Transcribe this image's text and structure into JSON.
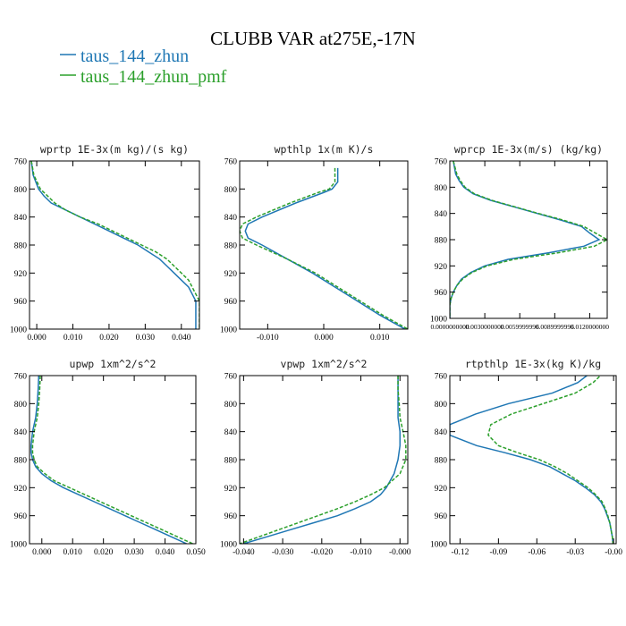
{
  "figure": {
    "title": "CLUBB VAR at275E,-17N",
    "legend": [
      {
        "label": "taus_144_zhun",
        "color": "#1f77b4",
        "dash": "solid"
      },
      {
        "label": "taus_144_zhun_pmf",
        "color": "#2ca02c",
        "dash": "dashed"
      }
    ],
    "colors": {
      "series1": "#1f77b4",
      "series2": "#2ca02c"
    }
  },
  "chart_data": [
    {
      "type": "line",
      "title": "wprtp  1E-3x(m kg)/(s kg)",
      "xlim": [
        -0.002,
        0.045
      ],
      "ylim": [
        760,
        1000
      ],
      "y_reversed": true,
      "xticks": [
        "0.000",
        "0.010",
        "0.020",
        "0.030",
        "0.040"
      ],
      "xtick_values": [
        0,
        0.01,
        0.02,
        0.03,
        0.04
      ],
      "yticks": [
        "760",
        "800",
        "840",
        "880",
        "920",
        "960",
        "1000"
      ],
      "ytick_values": [
        760,
        800,
        840,
        880,
        920,
        960,
        1000
      ],
      "series": [
        {
          "y": [
            760,
            780,
            800,
            810,
            820,
            830,
            840,
            850,
            860,
            870,
            880,
            890,
            900,
            910,
            920,
            930,
            940,
            950,
            960,
            970,
            980,
            990,
            1000
          ],
          "x": [
            -0.0015,
            -0.001,
            0.0005,
            0.002,
            0.004,
            0.008,
            0.012,
            0.016,
            0.02,
            0.024,
            0.028,
            0.031,
            0.034,
            0.036,
            0.038,
            0.04,
            0.042,
            0.043,
            0.044,
            0.044,
            0.044,
            0.044,
            0.044
          ]
        },
        {
          "y": [
            760,
            780,
            800,
            810,
            820,
            830,
            840,
            850,
            860,
            870,
            880,
            890,
            900,
            910,
            920,
            930,
            940,
            950,
            960,
            970,
            980,
            990,
            1000
          ],
          "x": [
            -0.0015,
            -0.0008,
            0.001,
            0.003,
            0.005,
            0.008,
            0.012,
            0.017,
            0.021,
            0.025,
            0.029,
            0.033,
            0.036,
            0.038,
            0.04,
            0.042,
            0.043,
            0.044,
            0.045,
            0.045,
            0.045,
            0.045,
            0.045
          ]
        }
      ]
    },
    {
      "type": "line",
      "title": "wpthlp  1x(m K)/s",
      "xlim": [
        -0.015,
        0.015
      ],
      "ylim": [
        760,
        1000
      ],
      "y_reversed": true,
      "xticks": [
        "-0.010",
        "0.000",
        "0.010"
      ],
      "xtick_values": [
        -0.01,
        0,
        0.01
      ],
      "yticks": [
        "760",
        "800",
        "840",
        "880",
        "920",
        "960",
        "1000"
      ],
      "ytick_values": [
        760,
        800,
        840,
        880,
        920,
        960,
        1000
      ],
      "series": [
        {
          "y": [
            770,
            780,
            790,
            800,
            805,
            820,
            840,
            850,
            860,
            870,
            880,
            900,
            920,
            940,
            960,
            980,
            1000
          ],
          "x": [
            0.0025,
            0.0025,
            0.0025,
            0.0015,
            0.0,
            -0.005,
            -0.011,
            -0.0135,
            -0.014,
            -0.0135,
            -0.011,
            -0.0065,
            -0.002,
            0.002,
            0.006,
            0.01,
            0.0145
          ]
        },
        {
          "y": [
            770,
            780,
            790,
            800,
            805,
            820,
            840,
            850,
            860,
            870,
            880,
            900,
            920,
            940,
            960,
            980,
            1000
          ],
          "x": [
            0.002,
            0.002,
            0.002,
            0.001,
            -0.001,
            -0.006,
            -0.012,
            -0.0145,
            -0.015,
            -0.0145,
            -0.012,
            -0.0065,
            -0.0015,
            0.0025,
            0.0065,
            0.0105,
            0.015
          ]
        }
      ]
    },
    {
      "type": "line",
      "title": "wprcp  1E-3x(m/s) (kg/kg)",
      "xlim": [
        0.0,
        0.0135
      ],
      "ylim": [
        760,
        1000
      ],
      "y_reversed": true,
      "xticks": [
        "0.0000000000",
        "0.0030000000",
        "0.0059999996",
        "0.0089999996",
        "0.0120000000"
      ],
      "xtick_values": [
        0,
        0.003,
        0.006,
        0.009,
        0.012
      ],
      "yticks": [
        "760",
        "800",
        "840",
        "880",
        "920",
        "960",
        "1000"
      ],
      "ytick_values": [
        760,
        800,
        840,
        880,
        920,
        960,
        1000
      ],
      "series": [
        {
          "y": [
            760,
            780,
            790,
            800,
            810,
            820,
            830,
            840,
            850,
            860,
            870,
            880,
            890,
            900,
            910,
            920,
            930,
            940,
            950,
            960,
            970,
            980,
            990,
            1000
          ],
          "x": [
            0.0003,
            0.0005,
            0.0008,
            0.0012,
            0.002,
            0.0035,
            0.0055,
            0.0075,
            0.0095,
            0.0113,
            0.012,
            0.0128,
            0.0115,
            0.0085,
            0.005,
            0.003,
            0.0018,
            0.001,
            0.0006,
            0.0003,
            0.0001,
            0.0,
            0.0,
            0.0
          ]
        },
        {
          "y": [
            760,
            780,
            790,
            800,
            810,
            820,
            830,
            840,
            850,
            860,
            870,
            880,
            890,
            900,
            910,
            920,
            930,
            940,
            950,
            960,
            970,
            980,
            990,
            1000
          ],
          "x": [
            0.0003,
            0.0006,
            0.0009,
            0.0013,
            0.0021,
            0.0036,
            0.0056,
            0.0076,
            0.0097,
            0.0115,
            0.0125,
            0.0135,
            0.0124,
            0.0093,
            0.0055,
            0.0032,
            0.0019,
            0.0011,
            0.0006,
            0.0003,
            0.0001,
            0.0,
            0.0,
            0.0
          ]
        }
      ]
    },
    {
      "type": "line",
      "title": "upwp  1xm^2/s^2",
      "xlim": [
        -0.004,
        0.05
      ],
      "ylim": [
        760,
        1000
      ],
      "y_reversed": true,
      "xticks": [
        "0.000",
        "0.010",
        "0.020",
        "0.030",
        "0.040",
        "0.050"
      ],
      "xtick_values": [
        0,
        0.01,
        0.02,
        0.03,
        0.04,
        0.05
      ],
      "yticks": [
        "760",
        "800",
        "840",
        "880",
        "920",
        "960",
        "1000"
      ],
      "ytick_values": [
        760,
        800,
        840,
        880,
        920,
        960,
        1000
      ],
      "series": [
        {
          "y": [
            760,
            780,
            800,
            820,
            840,
            860,
            870,
            880,
            890,
            900,
            910,
            920,
            930,
            940,
            950,
            960,
            970,
            980,
            990,
            1000
          ],
          "x": [
            -0.001,
            -0.0012,
            -0.0015,
            -0.002,
            -0.003,
            -0.0035,
            -0.0035,
            -0.003,
            -0.002,
            0.0,
            0.003,
            0.007,
            0.012,
            0.017,
            0.022,
            0.027,
            0.032,
            0.037,
            0.042,
            0.047
          ]
        },
        {
          "y": [
            760,
            780,
            800,
            820,
            840,
            860,
            870,
            880,
            890,
            900,
            910,
            920,
            930,
            940,
            950,
            960,
            970,
            980,
            990,
            1000
          ],
          "x": [
            -0.0005,
            -0.0007,
            -0.001,
            -0.0015,
            -0.0025,
            -0.003,
            -0.003,
            -0.0025,
            -0.0015,
            0.001,
            0.004,
            0.009,
            0.014,
            0.019,
            0.024,
            0.029,
            0.034,
            0.039,
            0.044,
            0.049
          ]
        }
      ]
    },
    {
      "type": "line",
      "title": "vpwp  1xm^2/s^2",
      "xlim": [
        -0.041,
        0.002
      ],
      "ylim": [
        760,
        1000
      ],
      "y_reversed": true,
      "xticks": [
        "-0.040",
        "-0.030",
        "-0.020",
        "-0.010",
        "-0.000"
      ],
      "xtick_values": [
        -0.04,
        -0.03,
        -0.02,
        -0.01,
        0
      ],
      "yticks": [
        "760",
        "800",
        "840",
        "880",
        "920",
        "960",
        "1000"
      ],
      "ytick_values": [
        760,
        800,
        840,
        880,
        920,
        960,
        1000
      ],
      "series": [
        {
          "y": [
            760,
            780,
            800,
            820,
            840,
            860,
            880,
            900,
            920,
            930,
            940,
            950,
            960,
            970,
            980,
            990,
            1000
          ],
          "x": [
            -0.0005,
            -0.0005,
            -0.0005,
            -0.0005,
            0.0,
            0.0,
            -0.0005,
            -0.0015,
            -0.0035,
            -0.005,
            -0.0075,
            -0.0115,
            -0.016,
            -0.022,
            -0.028,
            -0.034,
            -0.04
          ]
        },
        {
          "y": [
            760,
            780,
            800,
            820,
            840,
            860,
            880,
            900,
            920,
            930,
            940,
            950,
            960,
            970,
            980,
            990,
            1000
          ],
          "x": [
            -0.0005,
            -0.0005,
            -0.0002,
            0.0,
            0.0008,
            0.0015,
            0.0015,
            0.0,
            -0.004,
            -0.0075,
            -0.0115,
            -0.016,
            -0.021,
            -0.026,
            -0.031,
            -0.036,
            -0.041
          ]
        }
      ]
    },
    {
      "type": "line",
      "title": "rtpthlp  1E-3x(kg K)/kg",
      "xlim": [
        -0.128,
        0.002
      ],
      "ylim": [
        760,
        1000
      ],
      "y_reversed": true,
      "xticks": [
        "-0.12",
        "-0.09",
        "-0.06",
        "-0.03",
        "-0.00"
      ],
      "xtick_values": [
        -0.12,
        -0.09,
        -0.06,
        -0.03,
        0
      ],
      "yticks": [
        "760",
        "800",
        "840",
        "880",
        "920",
        "960",
        "1000"
      ],
      "ytick_values": [
        760,
        800,
        840,
        880,
        920,
        960,
        1000
      ],
      "series": [
        {
          "y": [
            756,
            770,
            785,
            800,
            815,
            830,
            845,
            860,
            870,
            880,
            890,
            900,
            910,
            920,
            930,
            940,
            950,
            960,
            970,
            980,
            990,
            1000
          ],
          "x": [
            -0.018,
            -0.028,
            -0.048,
            -0.082,
            -0.108,
            -0.128,
            -0.128,
            -0.107,
            -0.085,
            -0.065,
            -0.05,
            -0.04,
            -0.03,
            -0.022,
            -0.015,
            -0.01,
            -0.007,
            -0.005,
            -0.003,
            -0.002,
            -0.001,
            -0.0005
          ]
        },
        {
          "y": [
            756,
            770,
            785,
            800,
            815,
            830,
            845,
            860,
            870,
            880,
            890,
            900,
            910,
            920,
            930,
            940,
            950,
            960,
            970,
            980,
            990,
            1000
          ],
          "x": [
            -0.008,
            -0.016,
            -0.03,
            -0.055,
            -0.08,
            -0.096,
            -0.098,
            -0.09,
            -0.075,
            -0.058,
            -0.046,
            -0.036,
            -0.028,
            -0.02,
            -0.014,
            -0.009,
            -0.0065,
            -0.0045,
            -0.003,
            -0.002,
            -0.001,
            -0.0005
          ]
        }
      ]
    }
  ]
}
